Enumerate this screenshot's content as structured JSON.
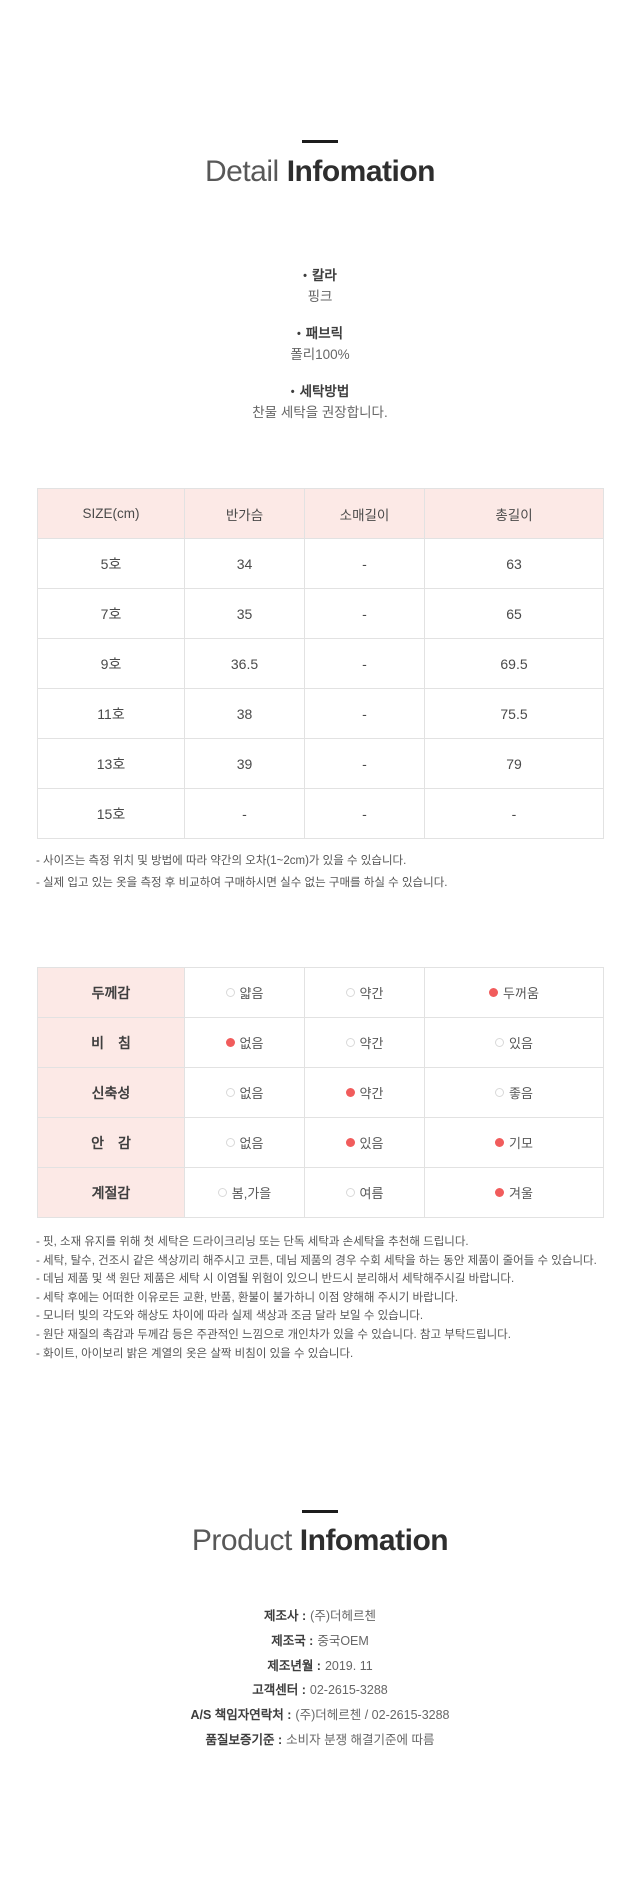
{
  "detail_section": {
    "title_light": "Detail",
    "title_bold": "Infomation",
    "bullet_glyph": "•",
    "attributes": [
      {
        "label": "칼라",
        "value": "핑크"
      },
      {
        "label": "패브릭",
        "value": "폴리100%"
      },
      {
        "label": "세탁방법",
        "value": "찬물 세탁을 권장합니다."
      }
    ]
  },
  "size_table": {
    "headers": [
      "SIZE(cm)",
      "반가슴",
      "소매길이",
      "총길이"
    ],
    "rows": [
      [
        "5호",
        "34",
        "-",
        "63"
      ],
      [
        "7호",
        "35",
        "-",
        "65"
      ],
      [
        "9호",
        "36.5",
        "-",
        "69.5"
      ],
      [
        "11호",
        "38",
        "-",
        "75.5"
      ],
      [
        "13호",
        "39",
        "-",
        "79"
      ],
      [
        "15호",
        "-",
        "-",
        "-"
      ]
    ],
    "notes": [
      "- 사이즈는 측정 위치 및 방법에 따라 약간의 오차(1~2cm)가 있을 수 있습니다.",
      "- 실제 입고 있는 옷을 측정 후 비교하여 구매하시면 실수 없는 구매를 하실 수 있습니다."
    ]
  },
  "fabric_table": {
    "rows": [
      {
        "label": "두께감",
        "options": [
          {
            "text": "얇음",
            "selected": false
          },
          {
            "text": "약간",
            "selected": false
          },
          {
            "text": "두꺼움",
            "selected": true
          }
        ]
      },
      {
        "label": "비　침",
        "options": [
          {
            "text": "없음",
            "selected": true
          },
          {
            "text": "약간",
            "selected": false
          },
          {
            "text": "있음",
            "selected": false
          }
        ]
      },
      {
        "label": "신축성",
        "options": [
          {
            "text": "없음",
            "selected": false
          },
          {
            "text": "약간",
            "selected": true
          },
          {
            "text": "좋음",
            "selected": false
          }
        ]
      },
      {
        "label": "안　감",
        "options": [
          {
            "text": "없음",
            "selected": false
          },
          {
            "text": "있음",
            "selected": true
          },
          {
            "text": "기모",
            "selected": true
          }
        ]
      },
      {
        "label": "계절감",
        "options": [
          {
            "text": "봄,가을",
            "selected": false
          },
          {
            "text": "여름",
            "selected": false
          },
          {
            "text": "겨울",
            "selected": true
          }
        ]
      }
    ],
    "notes": [
      "- 핏, 소재 유지를 위해 첫 세탁은 드라이크리닝 또는 단독 세탁과 손세탁을 추천해 드립니다.",
      "- 세탁, 탈수, 건조시 같은 색상끼리 해주시고 코튼, 데님 제품의 경우 수회 세탁을 하는 동안 제품이 줄어들 수 있습니다.",
      "- 데님 제품 및 색 원단 제품은 세탁 시 이염될 위험이 있으니 반드시 분리해서 세탁해주시길 바랍니다.",
      "- 세탁 후에는 어떠한 이유로든 교환, 반품, 환불이 불가하니 이점 양해해 주시기 바랍니다.",
      "- 모니터 빛의 각도와 해상도 차이에 따라 실제 색상과 조금 달라 보일 수 있습니다.",
      "- 원단 재질의 촉감과 두께감 등은 주관적인 느낌으로 개인차가 있을 수 있습니다. 참고 부탁드립니다.",
      "- 화이트, 아이보리 밝은 계열의 옷은 살짝 비침이 있을 수 있습니다."
    ]
  },
  "product_section": {
    "title_light": "Product",
    "title_bold": "Infomation",
    "info": [
      {
        "label": "제조사 :",
        "value": "(주)더헤르첸"
      },
      {
        "label": "제조국 :",
        "value": "중국OEM"
      },
      {
        "label": "제조년월 :",
        "value": "2019. 11"
      },
      {
        "label": "고객센터 :",
        "value": "02-2615-3288"
      },
      {
        "label": "A/S 책임자연락처 :",
        "value": "(주)더헤르첸 / 02-2615-3288"
      },
      {
        "label": "품질보증기준 :",
        "value": "소비자 분쟁 해결기준에 따름"
      }
    ]
  },
  "colors": {
    "header_pink": "#fce9e6",
    "accent_red": "#f15c5c",
    "border_gray": "#e2e2e2",
    "title_dark": "#2e2e2e",
    "divider_black": "#1c1c1c"
  }
}
